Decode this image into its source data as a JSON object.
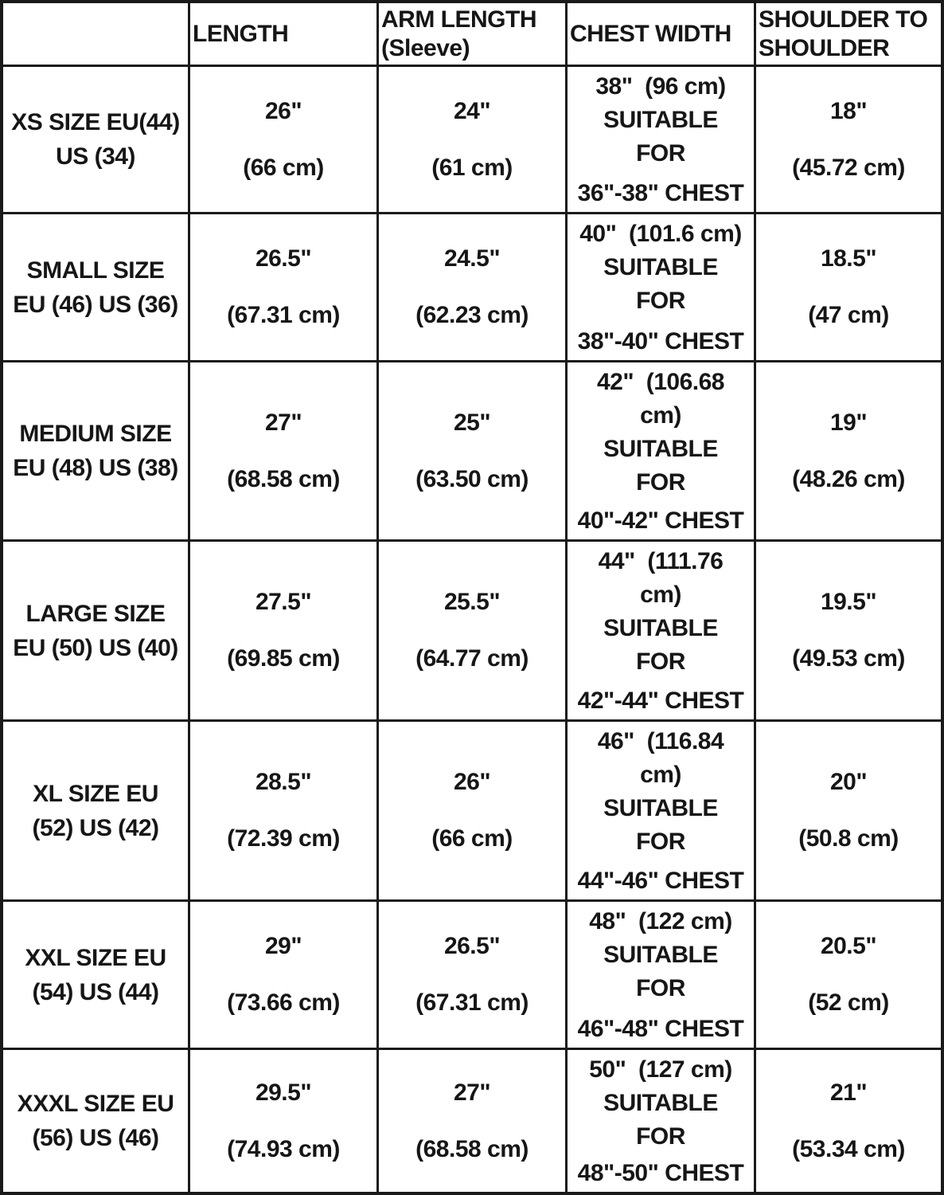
{
  "accent_colors": {
    "text": "#161616",
    "grid_line": "#1a1a1a",
    "background": "#ffffff"
  },
  "header": {
    "corner": "",
    "length": [
      "LENGTH"
    ],
    "arm": [
      "ARM LENGTH",
      "(Sleeve)"
    ],
    "chest": [
      "CHEST WIDTH"
    ],
    "shoulder": [
      "SHOULDER TO",
      "SHOULDER"
    ]
  },
  "rows": [
    {
      "size": [
        "XS SIZE EU(44)",
        "US (34)"
      ],
      "length_in": "26\"",
      "length_cm": "(66 cm)",
      "arm_in": "24\"",
      "arm_cm": "(61 cm)",
      "chest_top": [
        "38\"  (96 cm)",
        "SUITABLE",
        "FOR"
      ],
      "chest_range": "36\"-38\" CHEST",
      "shoulder_in": "18\"",
      "shoulder_cm": "(45.72 cm)"
    },
    {
      "size": [
        "SMALL SIZE",
        "EU (46) US (36)"
      ],
      "length_in": "26.5\"",
      "length_cm": "(67.31 cm)",
      "arm_in": "24.5\"",
      "arm_cm": "(62.23 cm)",
      "chest_top": [
        "40\"  (101.6 cm)",
        "SUITABLE",
        "FOR"
      ],
      "chest_range": "38\"-40\" CHEST",
      "shoulder_in": "18.5\"",
      "shoulder_cm": "(47 cm)"
    },
    {
      "size": [
        "MEDIUM SIZE",
        "EU (48) US (38)"
      ],
      "length_in": "27\"",
      "length_cm": "(68.58 cm)",
      "arm_in": "25\"",
      "arm_cm": "(63.50 cm)",
      "chest_top": [
        "42\"  (106.68",
        "cm)",
        "SUITABLE",
        "FOR"
      ],
      "chest_range": "40\"-42\" CHEST",
      "shoulder_in": "19\"",
      "shoulder_cm": "(48.26 cm)"
    },
    {
      "size": [
        "LARGE SIZE",
        "EU (50) US (40)"
      ],
      "length_in": "27.5\"",
      "length_cm": "(69.85 cm)",
      "arm_in": "25.5\"",
      "arm_cm": "(64.77 cm)",
      "chest_top": [
        "44\"  (111.76",
        "cm)",
        "SUITABLE",
        "FOR"
      ],
      "chest_range": "42\"-44\" CHEST",
      "shoulder_in": "19.5\"",
      "shoulder_cm": "(49.53 cm)"
    },
    {
      "size": [
        "XL SIZE EU",
        "(52) US (42)"
      ],
      "length_in": "28.5\"",
      "length_cm": "(72.39 cm)",
      "arm_in": "26\"",
      "arm_cm": "(66 cm)",
      "chest_top": [
        "46\"  (116.84",
        "cm)",
        "SUITABLE",
        "FOR"
      ],
      "chest_range": "44\"-46\" CHEST",
      "shoulder_in": "20\"",
      "shoulder_cm": "(50.8 cm)"
    },
    {
      "size": [
        "XXL SIZE EU",
        "(54) US (44)"
      ],
      "length_in": "29\"",
      "length_cm": "(73.66 cm)",
      "arm_in": "26.5\"",
      "arm_cm": "(67.31 cm)",
      "chest_top": [
        "48\"  (122 cm)",
        "SUITABLE",
        "FOR"
      ],
      "chest_range": "46\"-48\" CHEST",
      "shoulder_in": "20.5\"",
      "shoulder_cm": "(52 cm)"
    },
    {
      "size": [
        "XXXL SIZE EU",
        "(56) US (46)"
      ],
      "length_in": "29.5\"",
      "length_cm": "(74.93 cm)",
      "arm_in": "27\"",
      "arm_cm": "(68.58 cm)",
      "chest_top": [
        "50\"  (127 cm)",
        "SUITABLE",
        "FOR"
      ],
      "chest_range": "48\"-50\" CHEST",
      "shoulder_in": "21\"",
      "shoulder_cm": "(53.34 cm)"
    }
  ],
  "chart_data": {
    "type": "table",
    "title": "Garment size chart",
    "columns": [
      "",
      "LENGTH",
      "ARM LENGTH (Sleeve)",
      "CHEST WIDTH",
      "SHOULDER TO SHOULDER"
    ],
    "rows": [
      [
        "XS SIZE EU(44) US (34)",
        "26\" (66 cm)",
        "24\" (61 cm)",
        "38\" (96 cm) SUITABLE FOR 36\"-38\" CHEST",
        "18\" (45.72 cm)"
      ],
      [
        "SMALL SIZE EU (46) US (36)",
        "26.5\" (67.31 cm)",
        "24.5\" (62.23 cm)",
        "40\" (101.6 cm) SUITABLE FOR 38\"-40\" CHEST",
        "18.5\" (47 cm)"
      ],
      [
        "MEDIUM SIZE EU (48) US (38)",
        "27\" (68.58 cm)",
        "25\" (63.50 cm)",
        "42\" (106.68 cm) SUITABLE FOR 40\"-42\" CHEST",
        "19\" (48.26 cm)"
      ],
      [
        "LARGE SIZE EU (50) US (40)",
        "27.5\" (69.85 cm)",
        "25.5\" (64.77 cm)",
        "44\" (111.76 cm) SUITABLE FOR 42\"-44\" CHEST",
        "19.5\" (49.53 cm)"
      ],
      [
        "XL SIZE EU (52) US (42)",
        "28.5\" (72.39 cm)",
        "26\" (66 cm)",
        "46\" (116.84 cm) SUITABLE FOR 44\"-46\" CHEST",
        "20\" (50.8 cm)"
      ],
      [
        "XXL SIZE EU (54) US (44)",
        "29\" (73.66 cm)",
        "26.5\" (67.31 cm)",
        "48\" (122 cm) SUITABLE FOR 46\"-48\" CHEST",
        "20.5\" (52 cm)"
      ],
      [
        "XXXL SIZE EU (56) US (46)",
        "29.5\" (74.93 cm)",
        "27\" (68.58 cm)",
        "50\" (127 cm) SUITABLE FOR 48\"-50\" CHEST",
        "21\" (53.34 cm)"
      ]
    ],
    "layout": {
      "grid": "on",
      "header_row": true,
      "text_style": "bold black on white"
    }
  }
}
